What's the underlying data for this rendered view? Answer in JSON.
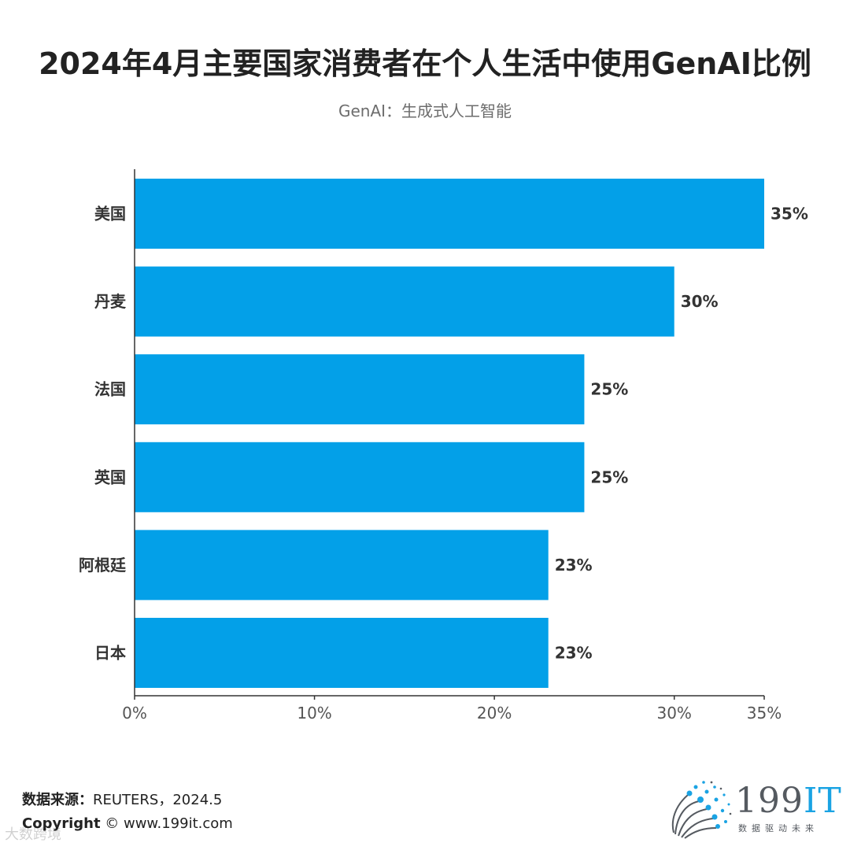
{
  "chart_data": {
    "type": "bar",
    "orientation": "horizontal",
    "title": "2024年4月主要国家消费者在个人生活中使用GenAI比例",
    "subtitle": "GenAI：生成式人工智能",
    "categories": [
      "美国",
      "丹麦",
      "法国",
      "英国",
      "阿根廷",
      "日本"
    ],
    "values": [
      35,
      30,
      25,
      25,
      23,
      23
    ],
    "value_labels": [
      "35%",
      "30%",
      "25%",
      "25%",
      "23%",
      "23%"
    ],
    "xlim": [
      0,
      35
    ],
    "x_ticks": [
      0,
      10,
      20,
      30,
      35
    ],
    "x_tick_labels": [
      "0%",
      "10%",
      "20%",
      "30%",
      "35%"
    ],
    "xlabel": "",
    "ylabel": "",
    "grid": false,
    "bar_color": "#03a0e8"
  },
  "footer": {
    "source_label": "数据来源：",
    "source_value": "REUTERS，2024.5",
    "copyright_label": "Copyright",
    "copyright_value": " © www.199it.com"
  },
  "logo": {
    "name": "199",
    "name_accent": "IT",
    "tagline": "数据驱动未来",
    "accent_color": "#1aa3e3"
  },
  "watermark": "大数跨境"
}
